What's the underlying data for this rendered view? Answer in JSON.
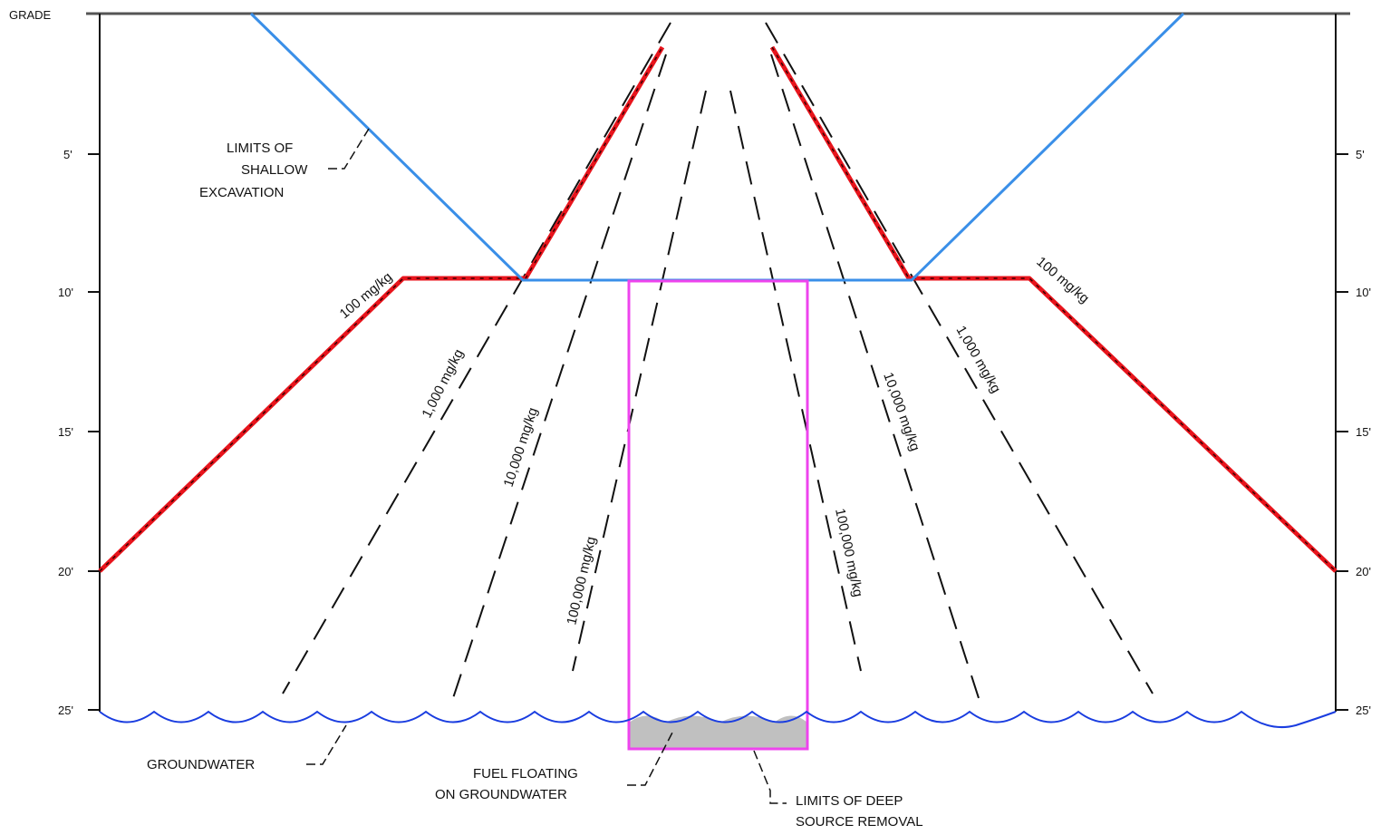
{
  "title": "",
  "depth_axis": {
    "grade_label": "GRADE",
    "ticks": [
      {
        "depth_ft": 5,
        "label": "5'"
      },
      {
        "depth_ft": 10,
        "label": "10'"
      },
      {
        "depth_ft": 15,
        "label": "15'"
      },
      {
        "depth_ft": 20,
        "label": "20'"
      },
      {
        "depth_ft": 25,
        "label": "25'"
      }
    ]
  },
  "callouts": {
    "shallow_excavation": [
      "LIMITS OF",
      "SHALLOW",
      "EXCAVATION"
    ],
    "groundwater": "GROUNDWATER",
    "fuel_floating": [
      "FUEL FLOATING",
      "ON GROUNDWATER"
    ],
    "deep_source_removal": [
      "LIMITS OF DEEP",
      "SOURCE REMOVAL"
    ]
  },
  "contours": [
    {
      "label": "100 mg/kg",
      "side": "left"
    },
    {
      "label": "1,000 mg/kg",
      "side": "left"
    },
    {
      "label": "10,000 mg/kg",
      "side": "left"
    },
    {
      "label": "100,000 mg/kg",
      "side": "left"
    },
    {
      "label": "100,000 mg/kg",
      "side": "right"
    },
    {
      "label": "10,000 mg/kg",
      "side": "right"
    },
    {
      "label": "1,000 mg/kg",
      "side": "right"
    },
    {
      "label": "100 mg/kg",
      "side": "right"
    }
  ],
  "colors": {
    "grade_line": "#555555",
    "shallow_excavation": "#3a8fe8",
    "contour_100": "#e8141c",
    "dashed_contours": "#111111",
    "deep_source_removal": "#ee44ee",
    "groundwater": "#1a3de0",
    "fuel": "#c0c0c0"
  }
}
